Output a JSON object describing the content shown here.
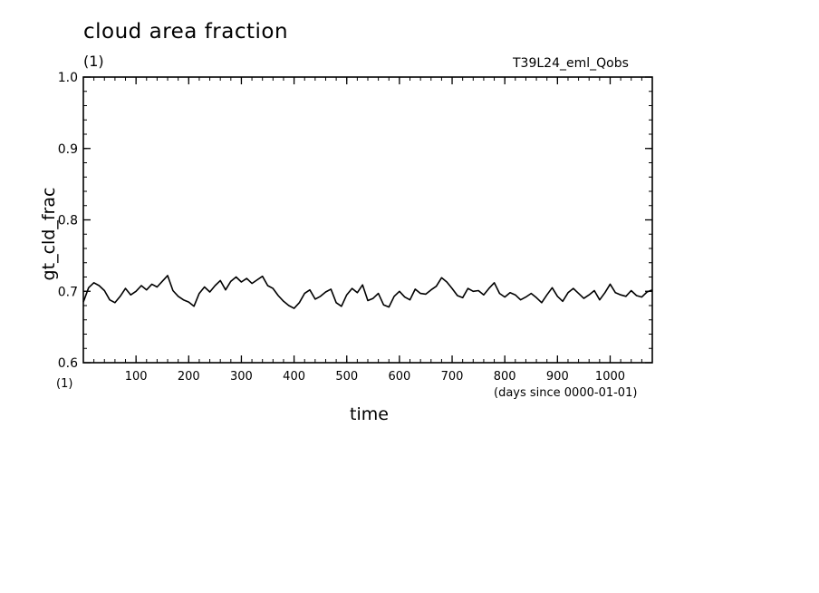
{
  "header": {
    "title": "cloud area fraction",
    "unit_top": "(1)",
    "experiment": "T39L24_eml_Qobs"
  },
  "axes": {
    "xlabel": "time",
    "xunit": "(days since 0000-01-01)",
    "ylabel": "gt_cld_frac",
    "yunit": "(1)"
  },
  "chart_data": {
    "type": "line",
    "title": "cloud area fraction",
    "xlabel": "time",
    "ylabel": "gt_cld_frac",
    "xlim": [
      0,
      1080
    ],
    "ylim": [
      0.6,
      1.0
    ],
    "x_ticks": [
      100,
      200,
      300,
      400,
      500,
      600,
      700,
      800,
      900,
      1000
    ],
    "y_ticks": [
      0.6,
      0.7,
      0.8,
      0.9,
      1.0
    ],
    "y_tick_labels": [
      "0.6",
      "0.7",
      "0.8",
      "0.9",
      "1.0"
    ],
    "grid": false,
    "series": [
      {
        "color": "#000000",
        "x": [
          0,
          10,
          20,
          30,
          40,
          50,
          60,
          70,
          80,
          90,
          100,
          110,
          120,
          130,
          140,
          150,
          160,
          170,
          180,
          190,
          200,
          210,
          220,
          230,
          240,
          250,
          260,
          270,
          280,
          290,
          300,
          310,
          320,
          330,
          340,
          350,
          360,
          370,
          380,
          390,
          400,
          410,
          420,
          430,
          440,
          450,
          460,
          470,
          480,
          490,
          500,
          510,
          520,
          530,
          540,
          550,
          560,
          570,
          580,
          590,
          600,
          610,
          620,
          630,
          640,
          650,
          660,
          670,
          680,
          690,
          700,
          710,
          720,
          730,
          740,
          750,
          760,
          770,
          780,
          790,
          800,
          810,
          820,
          830,
          840,
          850,
          860,
          870,
          880,
          890,
          900,
          910,
          920,
          930,
          940,
          950,
          960,
          970,
          980,
          990,
          1000,
          1010,
          1020,
          1030,
          1040,
          1050,
          1060,
          1070,
          1080
        ],
        "values": [
          0.685,
          0.705,
          0.712,
          0.708,
          0.701,
          0.688,
          0.684,
          0.693,
          0.704,
          0.695,
          0.7,
          0.708,
          0.702,
          0.71,
          0.706,
          0.714,
          0.722,
          0.701,
          0.693,
          0.688,
          0.685,
          0.679,
          0.697,
          0.706,
          0.699,
          0.708,
          0.715,
          0.702,
          0.714,
          0.72,
          0.713,
          0.718,
          0.711,
          0.716,
          0.721,
          0.708,
          0.704,
          0.694,
          0.686,
          0.68,
          0.676,
          0.684,
          0.697,
          0.702,
          0.689,
          0.693,
          0.699,
          0.703,
          0.684,
          0.679,
          0.695,
          0.704,
          0.698,
          0.709,
          0.687,
          0.69,
          0.697,
          0.681,
          0.678,
          0.693,
          0.7,
          0.692,
          0.688,
          0.703,
          0.697,
          0.696,
          0.702,
          0.707,
          0.719,
          0.713,
          0.704,
          0.694,
          0.691,
          0.704,
          0.7,
          0.701,
          0.695,
          0.704,
          0.712,
          0.697,
          0.692,
          0.698,
          0.695,
          0.688,
          0.692,
          0.697,
          0.691,
          0.684,
          0.695,
          0.705,
          0.693,
          0.686,
          0.698,
          0.704,
          0.697,
          0.69,
          0.695,
          0.701,
          0.688,
          0.698,
          0.71,
          0.698,
          0.695,
          0.693,
          0.701,
          0.694,
          0.692,
          0.699,
          0.702
        ]
      }
    ]
  }
}
